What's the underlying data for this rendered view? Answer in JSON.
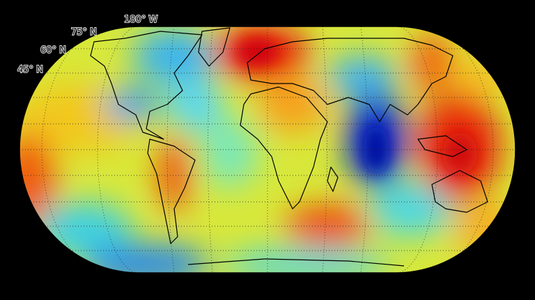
{
  "map": {
    "labels": {
      "longitude": "180° W",
      "latitudes": [
        "75° N",
        "60° N",
        "45° N"
      ]
    }
  }
}
